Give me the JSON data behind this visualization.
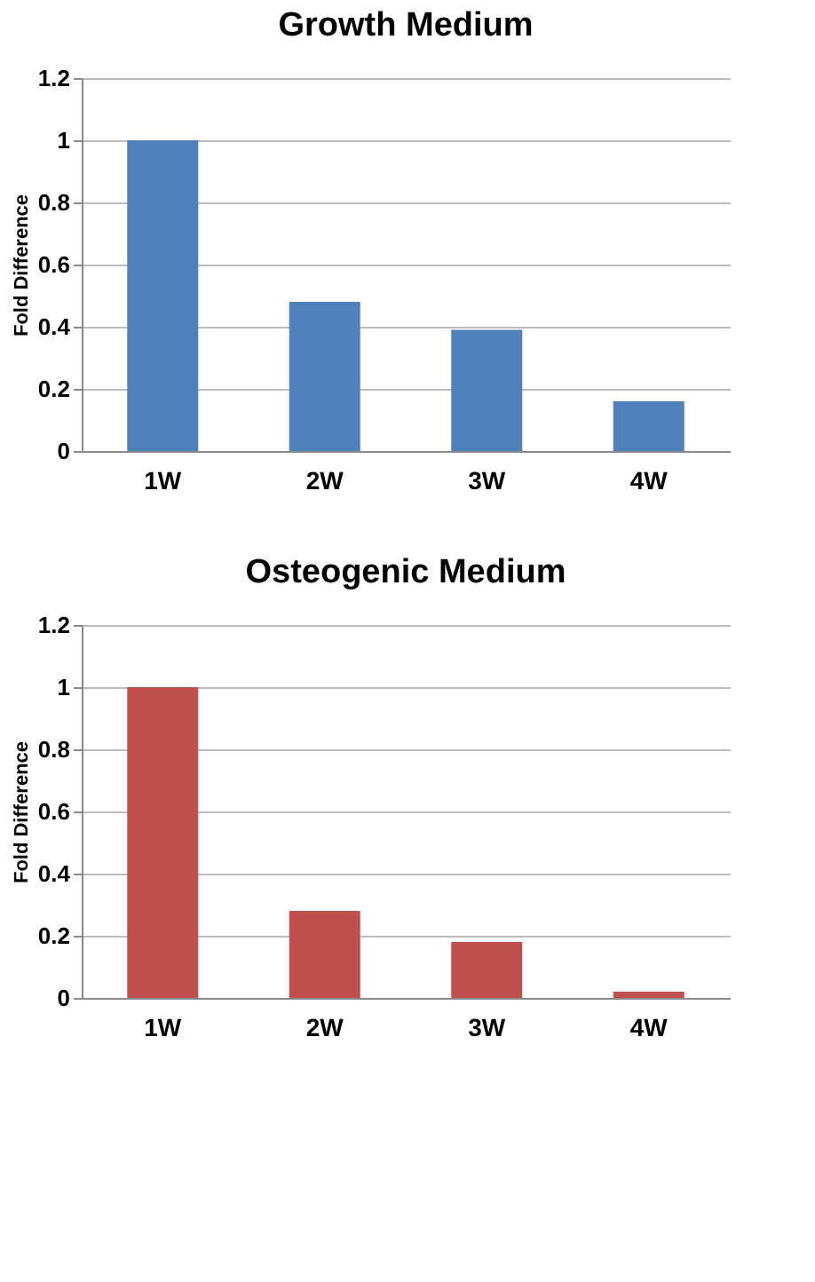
{
  "chart_data": [
    {
      "type": "bar",
      "title": "Growth Medium",
      "ylabel": "Fold Difference",
      "categories": [
        "1W",
        "2W",
        "3W",
        "4W"
      ],
      "series": [
        {
          "color": "#4f81bd",
          "values": [
            1,
            0.48,
            0.39,
            0.16
          ]
        }
      ],
      "ylim": [
        0,
        1.2
      ],
      "yticks": [
        0,
        0.2,
        0.4,
        0.6,
        0.8,
        1,
        1.2
      ],
      "grid": "y",
      "legend": false
    },
    {
      "type": "bar",
      "title": "Osteogenic Medium",
      "ylabel": "Fold Difference",
      "categories": [
        "1W",
        "2W",
        "3W",
        "4W"
      ],
      "series": [
        {
          "color": "#c0504d",
          "values": [
            1,
            0.28,
            0.18,
            0.02
          ]
        }
      ],
      "ylim": [
        0,
        1.2
      ],
      "yticks": [
        0,
        0.2,
        0.4,
        0.6,
        0.8,
        1,
        1.2
      ],
      "grid": "y",
      "legend": false
    }
  ]
}
